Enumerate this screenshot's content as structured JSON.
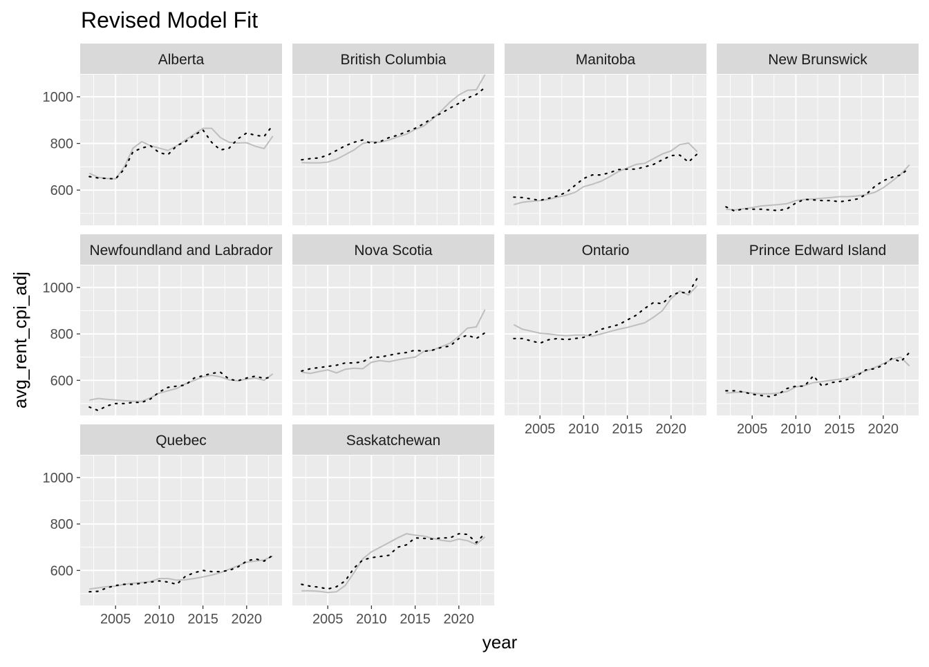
{
  "chart_data": {
    "type": "line",
    "title": "Revised Model Fit",
    "xlabel": "year",
    "ylabel": "avg_rent_cpi_adj",
    "x": [
      2002,
      2003,
      2004,
      2005,
      2006,
      2007,
      2008,
      2009,
      2010,
      2011,
      2012,
      2013,
      2014,
      2015,
      2016,
      2017,
      2018,
      2019,
      2020,
      2021,
      2022,
      2023
    ],
    "xlim": [
      2000.95,
      2024.05
    ],
    "ylim": [
      449,
      1095
    ],
    "x_ticks": [
      2005,
      2010,
      2015,
      2020
    ],
    "x_tick_labels": [
      "2005",
      "2010",
      "2015",
      "2020"
    ],
    "y_ticks": [
      600,
      800,
      1000
    ],
    "y_tick_labels": [
      "600",
      "800",
      "1000"
    ],
    "grid": true,
    "legend": "none",
    "colors": {
      "panel_bg": "#EBEBEB",
      "strip_bg": "#D9D9D9",
      "grid": "#FFFFFF",
      "actual_line": "#BEBEBE",
      "fitted_line": "#000000",
      "text": "#1A1A1A",
      "tick_text": "#4D4D4D"
    },
    "panels": [
      {
        "name": "Alberta",
        "actual": [
          672,
          655,
          650,
          648,
          700,
          780,
          808,
          790,
          780,
          770,
          790,
          815,
          840,
          865,
          865,
          825,
          805,
          802,
          803,
          788,
          778,
          832
        ],
        "fitted": [
          658,
          652,
          650,
          648,
          690,
          765,
          780,
          790,
          760,
          752,
          790,
          808,
          835,
          858,
          805,
          772,
          780,
          820,
          845,
          835,
          830,
          878
        ]
      },
      {
        "name": "British Columbia",
        "actual": [
          718,
          717,
          717,
          720,
          732,
          752,
          772,
          800,
          808,
          805,
          815,
          828,
          840,
          860,
          875,
          905,
          940,
          978,
          1008,
          1028,
          1030,
          1095
        ],
        "fitted": [
          730,
          735,
          738,
          750,
          770,
          790,
          805,
          815,
          800,
          808,
          825,
          835,
          850,
          865,
          885,
          910,
          930,
          952,
          972,
          995,
          1010,
          1040
        ]
      },
      {
        "name": "Manitoba",
        "actual": [
          538,
          548,
          552,
          555,
          560,
          570,
          578,
          590,
          615,
          625,
          638,
          658,
          680,
          695,
          710,
          715,
          735,
          755,
          768,
          795,
          802,
          765
        ],
        "fitted": [
          570,
          568,
          562,
          556,
          565,
          575,
          590,
          620,
          650,
          665,
          665,
          675,
          688,
          690,
          690,
          700,
          710,
          730,
          748,
          750,
          720,
          755
        ]
      },
      {
        "name": "New Brunswick",
        "actual": [
          518,
          515,
          520,
          525,
          532,
          535,
          538,
          542,
          555,
          560,
          562,
          565,
          568,
          572,
          572,
          575,
          580,
          590,
          610,
          638,
          668,
          708
        ],
        "fitted": [
          528,
          510,
          520,
          518,
          518,
          515,
          512,
          520,
          545,
          560,
          558,
          555,
          555,
          550,
          555,
          562,
          580,
          615,
          640,
          655,
          665,
          695
        ]
      },
      {
        "name": "Newfoundland and Labrador",
        "actual": [
          515,
          522,
          518,
          515,
          512,
          510,
          510,
          525,
          545,
          555,
          565,
          585,
          600,
          615,
          622,
          615,
          602,
          598,
          605,
          610,
          600,
          628
        ],
        "fitted": [
          485,
          470,
          490,
          500,
          500,
          505,
          505,
          520,
          550,
          570,
          575,
          580,
          610,
          620,
          630,
          635,
          605,
          598,
          610,
          618,
          608,
          615
        ]
      },
      {
        "name": "Nova Scotia",
        "actual": [
          635,
          630,
          638,
          645,
          632,
          648,
          652,
          650,
          678,
          685,
          680,
          688,
          695,
          700,
          725,
          730,
          745,
          760,
          790,
          825,
          830,
          905
        ],
        "fitted": [
          640,
          650,
          655,
          660,
          665,
          675,
          675,
          680,
          700,
          700,
          708,
          715,
          720,
          730,
          725,
          730,
          742,
          748,
          780,
          795,
          780,
          805
        ]
      },
      {
        "name": "Ontario",
        "actual": [
          840,
          820,
          812,
          803,
          800,
          795,
          792,
          795,
          795,
          790,
          800,
          810,
          820,
          828,
          838,
          848,
          872,
          900,
          952,
          985,
          968,
          1008
        ],
        "fitted": [
          780,
          780,
          770,
          760,
          775,
          780,
          775,
          780,
          785,
          800,
          820,
          830,
          840,
          860,
          880,
          910,
          935,
          930,
          965,
          980,
          975,
          1040
        ]
      },
      {
        "name": "Prince Edward Island",
        "actual": [
          545,
          548,
          550,
          545,
          542,
          542,
          545,
          552,
          572,
          578,
          590,
          595,
          600,
          605,
          612,
          628,
          640,
          655,
          672,
          690,
          700,
          662
        ],
        "fitted": [
          555,
          555,
          550,
          540,
          535,
          530,
          540,
          565,
          575,
          575,
          620,
          575,
          590,
          595,
          605,
          620,
          645,
          650,
          665,
          695,
          680,
          720
        ]
      },
      {
        "name": "Quebec",
        "actual": [
          520,
          525,
          530,
          532,
          540,
          545,
          548,
          552,
          565,
          565,
          558,
          560,
          565,
          572,
          580,
          590,
          605,
          620,
          635,
          640,
          645,
          662
        ],
        "fitted": [
          508,
          510,
          525,
          535,
          540,
          540,
          545,
          550,
          555,
          550,
          540,
          575,
          590,
          600,
          595,
          595,
          600,
          615,
          640,
          650,
          640,
          665
        ]
      },
      {
        "name": "Saskatchewan",
        "actual": [
          512,
          512,
          510,
          505,
          508,
          535,
          590,
          650,
          680,
          700,
          720,
          740,
          758,
          752,
          748,
          738,
          730,
          725,
          735,
          728,
          712,
          745
        ],
        "fitted": [
          540,
          532,
          528,
          520,
          530,
          555,
          610,
          645,
          655,
          660,
          665,
          700,
          710,
          740,
          738,
          735,
          740,
          740,
          758,
          755,
          720,
          760
        ]
      }
    ]
  }
}
